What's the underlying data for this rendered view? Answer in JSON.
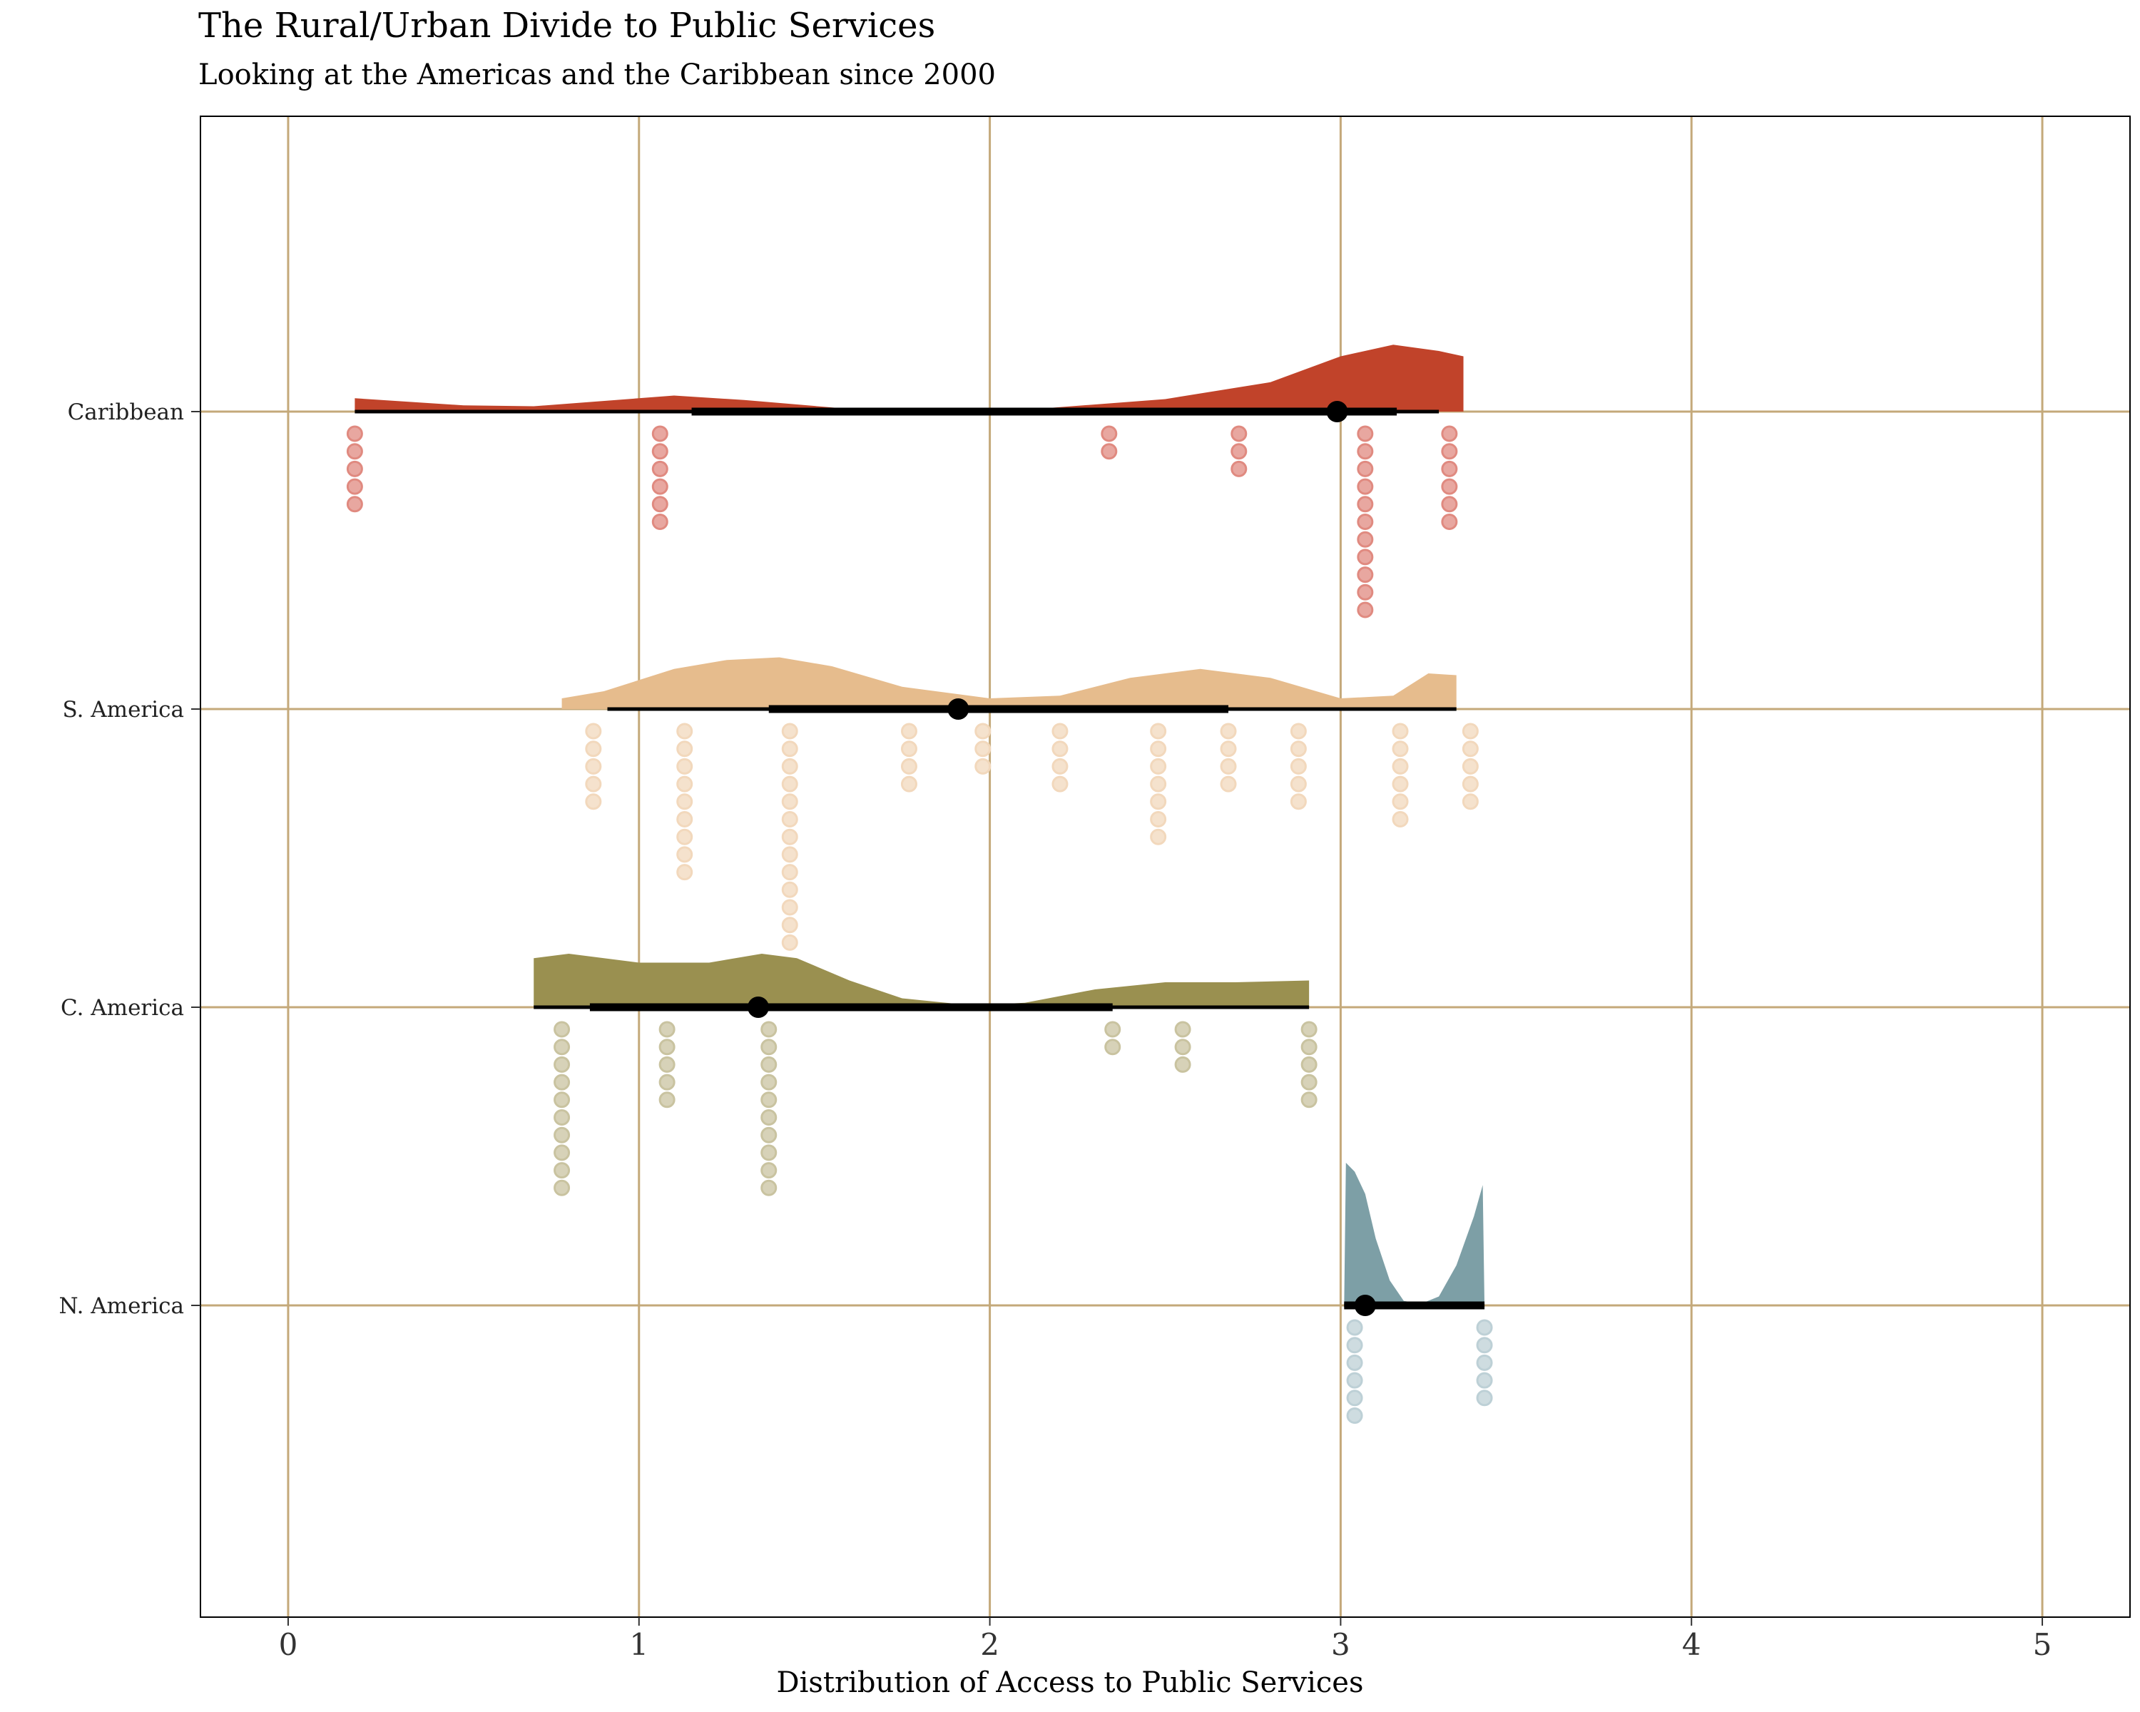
{
  "chart_data": {
    "type": "raincloud",
    "title": "The Rural/Urban Divide to Public Services",
    "subtitle": "Looking at the Americas and the Caribbean since 2000",
    "xlabel": "Distribution of Access to Public Services",
    "xlim": [
      -0.25,
      5.25
    ],
    "x_ticks": [
      "0",
      "1",
      "2",
      "3",
      "4",
      "5"
    ],
    "grid": true,
    "grid_color": "#C4A97A",
    "groups": [
      {
        "name": "Caribbean",
        "color": "#C1432A",
        "dot_color": "#E08A80",
        "range": [
          0.19,
          3.35
        ],
        "median": 2.99,
        "interval_inner": [
          1.15,
          3.16
        ],
        "interval_outer": [
          0.19,
          3.28
        ],
        "density": [
          [
            0.19,
            0.15
          ],
          [
            0.5,
            0.07
          ],
          [
            0.7,
            0.06
          ],
          [
            1.1,
            0.18
          ],
          [
            1.3,
            0.13
          ],
          [
            1.6,
            0.03
          ],
          [
            1.8,
            0.0
          ],
          [
            2.1,
            0.02
          ],
          [
            2.5,
            0.14
          ],
          [
            2.8,
            0.33
          ],
          [
            3.0,
            0.62
          ],
          [
            3.15,
            0.75
          ],
          [
            3.28,
            0.68
          ],
          [
            3.35,
            0.62
          ]
        ],
        "dots": [
          [
            0.19,
            5
          ],
          [
            1.06,
            6
          ],
          [
            2.34,
            2
          ],
          [
            2.71,
            3
          ],
          [
            3.07,
            11
          ],
          [
            3.31,
            6
          ]
        ]
      },
      {
        "name": "S. America",
        "color": "#E6BC8D",
        "dot_color": "#F2D8BC",
        "range": [
          0.78,
          3.33
        ],
        "median": 1.91,
        "interval_inner": [
          1.37,
          2.68
        ],
        "interval_outer": [
          0.91,
          3.33
        ],
        "density": [
          [
            0.78,
            0.12
          ],
          [
            0.9,
            0.2
          ],
          [
            1.1,
            0.45
          ],
          [
            1.25,
            0.55
          ],
          [
            1.4,
            0.58
          ],
          [
            1.55,
            0.48
          ],
          [
            1.75,
            0.25
          ],
          [
            2.0,
            0.12
          ],
          [
            2.2,
            0.15
          ],
          [
            2.4,
            0.35
          ],
          [
            2.6,
            0.45
          ],
          [
            2.8,
            0.35
          ],
          [
            3.0,
            0.12
          ],
          [
            3.15,
            0.15
          ],
          [
            3.25,
            0.4
          ],
          [
            3.33,
            0.38
          ]
        ],
        "dots": [
          [
            0.87,
            5
          ],
          [
            1.13,
            9
          ],
          [
            1.43,
            13
          ],
          [
            1.77,
            4
          ],
          [
            1.98,
            3
          ],
          [
            2.2,
            4
          ],
          [
            2.48,
            7
          ],
          [
            2.68,
            4
          ],
          [
            2.88,
            5
          ],
          [
            3.17,
            6
          ],
          [
            3.37,
            5
          ]
        ]
      },
      {
        "name": "C. America",
        "color": "#9A9050",
        "dot_color": "#C9C3A0",
        "range": [
          0.7,
          2.91
        ],
        "median": 1.34,
        "interval_inner": [
          0.86,
          2.35
        ],
        "interval_outer": [
          0.7,
          2.91
        ],
        "density": [
          [
            0.7,
            0.55
          ],
          [
            0.8,
            0.6
          ],
          [
            1.0,
            0.5
          ],
          [
            1.2,
            0.5
          ],
          [
            1.35,
            0.6
          ],
          [
            1.45,
            0.55
          ],
          [
            1.6,
            0.3
          ],
          [
            1.75,
            0.1
          ],
          [
            1.95,
            0.02
          ],
          [
            2.1,
            0.05
          ],
          [
            2.3,
            0.2
          ],
          [
            2.5,
            0.28
          ],
          [
            2.7,
            0.28
          ],
          [
            2.91,
            0.3
          ]
        ],
        "dots": [
          [
            0.78,
            10
          ],
          [
            1.08,
            5
          ],
          [
            1.37,
            10
          ],
          [
            2.35,
            2
          ],
          [
            2.55,
            3
          ],
          [
            2.91,
            5
          ]
        ]
      },
      {
        "name": "N. America",
        "color": "#7D9FA6",
        "dot_color": "#BDD0D6",
        "range": [
          3.01,
          3.41
        ],
        "median": 3.07,
        "interval_inner": [
          3.01,
          3.41
        ],
        "interval_outer": [
          3.01,
          3.41
        ],
        "density": [
          [
            3.01,
            0.0
          ],
          [
            3.015,
            1.6
          ],
          [
            3.04,
            1.5
          ],
          [
            3.07,
            1.25
          ],
          [
            3.1,
            0.75
          ],
          [
            3.14,
            0.28
          ],
          [
            3.18,
            0.05
          ],
          [
            3.23,
            0.02
          ],
          [
            3.28,
            0.1
          ],
          [
            3.33,
            0.45
          ],
          [
            3.38,
            1.0
          ],
          [
            3.405,
            1.35
          ],
          [
            3.41,
            0.0
          ]
        ],
        "dots": [
          [
            3.04,
            6
          ],
          [
            3.41,
            5
          ]
        ]
      }
    ]
  }
}
